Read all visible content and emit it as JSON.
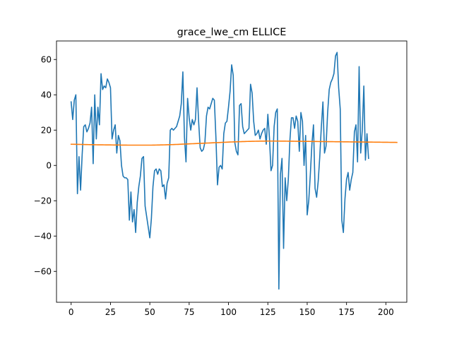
{
  "chart_data": {
    "type": "line",
    "title": "grace_lwe_cm ELLICE",
    "xlabel": "",
    "ylabel": "",
    "xlim": [
      -9.3,
      213.3
    ],
    "ylim": [
      -77.5,
      70.5
    ],
    "x_ticks": [
      0,
      25,
      50,
      75,
      100,
      125,
      150,
      175,
      200
    ],
    "y_ticks": [
      -60,
      -40,
      -20,
      0,
      20,
      40,
      60
    ],
    "grid": false,
    "legend": "none",
    "series": [
      {
        "color": "#1f77b4",
        "x_start": 0,
        "values": [
          36,
          26,
          37,
          40,
          -16,
          5,
          -14,
          6,
          22,
          23,
          19,
          21,
          24,
          33,
          1,
          40,
          15,
          33,
          23,
          52,
          43,
          45,
          44,
          49,
          47,
          44,
          15,
          20,
          23,
          7,
          17,
          14,
          0,
          -6,
          -7,
          -7,
          -8,
          -31,
          -15,
          -32,
          -25,
          -38,
          -21,
          -12,
          -6,
          4,
          5,
          -23,
          -29,
          -35,
          -41,
          -30,
          -12,
          -3,
          -2,
          -5,
          -2,
          -3,
          -12,
          -11,
          -19,
          -10,
          -7,
          20,
          21,
          20,
          21,
          22,
          25,
          28,
          35,
          53,
          16,
          2,
          38,
          27,
          20,
          26,
          23,
          26,
          44,
          25,
          10,
          8,
          9,
          13,
          28,
          33,
          32,
          35,
          38,
          37,
          16,
          -11,
          -1,
          0,
          -2,
          18,
          24,
          25,
          33,
          42,
          57,
          51,
          13,
          8,
          6,
          34,
          35,
          22,
          18,
          19,
          20,
          21,
          46,
          41,
          25,
          17,
          18,
          20,
          15,
          18,
          20,
          21,
          12,
          29,
          16,
          -3,
          0,
          22,
          30,
          32,
          -70,
          -5,
          4,
          -47,
          -7,
          -20,
          -8,
          14,
          27,
          27,
          21,
          28,
          25,
          8,
          30,
          25,
          0,
          17,
          -28,
          -20,
          -5,
          12,
          23,
          -13,
          -18,
          -9,
          5,
          22,
          36,
          7,
          11,
          30,
          43,
          47,
          49,
          52,
          62,
          64,
          44,
          32,
          -31,
          -38,
          -19,
          -8,
          -4,
          -14,
          -8,
          -4,
          19,
          23,
          2,
          56,
          7,
          20,
          45,
          3,
          18,
          4
        ]
      },
      {
        "color": "#ff7f0e",
        "x_start": 0,
        "values": [
          12,
          12,
          11.98,
          11.96,
          11.94,
          11.92,
          11.9,
          11.88,
          11.86,
          11.84,
          11.82,
          11.8,
          11.78,
          11.76,
          11.74,
          11.72,
          11.7,
          11.69,
          11.68,
          11.67,
          11.66,
          11.65,
          11.64,
          11.63,
          11.62,
          11.61,
          11.6,
          11.59,
          11.58,
          11.57,
          11.56,
          11.55,
          11.54,
          11.53,
          11.52,
          11.51,
          11.5,
          11.5,
          11.5,
          11.5,
          11.5,
          11.5,
          11.5,
          11.5,
          11.5,
          11.5,
          11.5,
          11.5,
          11.5,
          11.5,
          11.5,
          11.5,
          11.51,
          11.53,
          11.55,
          11.57,
          11.59,
          11.61,
          11.63,
          11.65,
          11.68,
          11.71,
          11.74,
          11.77,
          11.8,
          11.83,
          11.86,
          11.9,
          11.94,
          11.98,
          12.02,
          12.06,
          12.1,
          12.14,
          12.18,
          12.22,
          12.26,
          12.3,
          12.34,
          12.38,
          12.42,
          12.46,
          12.5,
          12.54,
          12.58,
          12.62,
          12.66,
          12.7,
          12.74,
          12.78,
          12.82,
          12.86,
          12.9,
          12.94,
          12.98,
          13.02,
          13.06,
          13.1,
          13.14,
          13.18,
          13.22,
          13.26,
          13.3,
          13.33,
          13.36,
          13.39,
          13.42,
          13.45,
          13.48,
          13.51,
          13.54,
          13.57,
          13.6,
          13.62,
          13.64,
          13.66,
          13.68,
          13.7,
          13.72,
          13.74,
          13.76,
          13.77,
          13.78,
          13.79,
          13.8,
          13.8,
          13.8,
          13.8,
          13.8,
          13.8,
          13.8,
          13.8,
          13.8,
          13.79,
          13.78,
          13.77,
          13.76,
          13.75,
          13.74,
          13.73,
          13.72,
          13.71,
          13.7,
          13.69,
          13.68,
          13.67,
          13.66,
          13.65,
          13.64,
          13.63,
          13.62,
          13.61,
          13.6,
          13.59,
          13.58,
          13.57,
          13.56,
          13.55,
          13.54,
          13.53,
          13.52,
          13.51,
          13.5,
          13.49,
          13.48,
          13.47,
          13.46,
          13.45,
          13.44,
          13.43,
          13.42,
          13.41,
          13.4,
          13.39,
          13.38,
          13.37,
          13.36,
          13.35,
          13.34,
          13.33,
          13.32,
          13.31,
          13.3,
          13.29,
          13.28,
          13.27,
          13.26,
          13.25,
          13.24,
          13.23,
          13.22,
          13.21,
          13.2,
          13.19,
          13.18,
          13.17,
          13.16,
          13.15,
          13.14,
          13.13,
          13.12,
          13.11,
          13.1,
          13.09,
          13.08,
          13.07,
          13.06,
          13.05
        ]
      }
    ]
  }
}
